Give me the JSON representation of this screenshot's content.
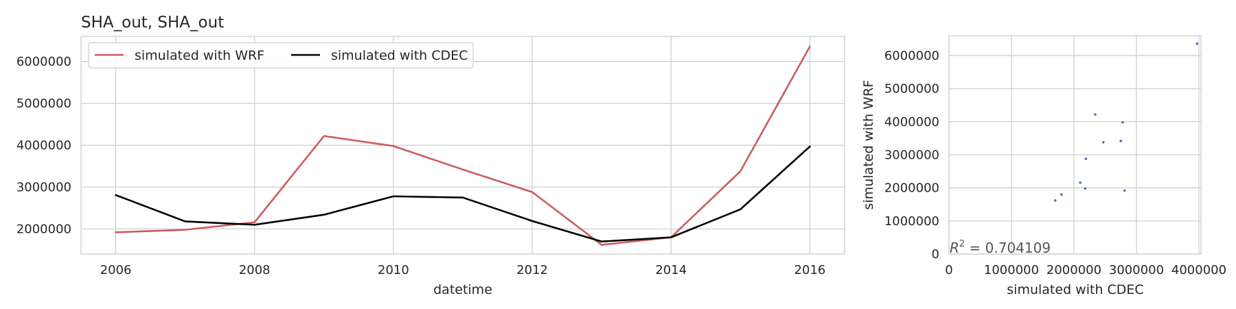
{
  "chart_data": [
    {
      "type": "line",
      "title": "SHA_out, SHA_out",
      "xlabel": "datetime",
      "ylabel": "",
      "x": [
        2006,
        2007,
        2008,
        2009,
        2010,
        2011,
        2012,
        2013,
        2014,
        2015,
        2016
      ],
      "xlim": [
        2005.5,
        2016.5
      ],
      "ylim": [
        1400000,
        6600000
      ],
      "xticks": [
        "2006",
        "2008",
        "2010",
        "2012",
        "2014",
        "2016"
      ],
      "yticks": [
        "2000000",
        "3000000",
        "4000000",
        "5000000",
        "6000000"
      ],
      "grid": true,
      "legend": "top-left",
      "series": [
        {
          "name": "simulated with WRF",
          "color": "#cd5c5c",
          "values": [
            1920000,
            1980000,
            2160000,
            4220000,
            3980000,
            3420000,
            2880000,
            1620000,
            1800000,
            3380000,
            6360000
          ]
        },
        {
          "name": "simulated with CDEC",
          "color": "#000000",
          "values": [
            2810000,
            2180000,
            2100000,
            2340000,
            2780000,
            2750000,
            2190000,
            1700000,
            1800000,
            2470000,
            3970000
          ]
        }
      ]
    },
    {
      "type": "scatter",
      "title": "",
      "xlabel": "simulated with CDEC",
      "ylabel": "simulated with WRF",
      "xlim": [
        0,
        4000000
      ],
      "ylim": [
        0,
        6600000
      ],
      "xticks": [
        "0",
        "1000000",
        "2000000",
        "3000000",
        "4000000"
      ],
      "yticks": [
        "0",
        "1000000",
        "2000000",
        "3000000",
        "4000000",
        "5000000",
        "6000000"
      ],
      "grid": true,
      "point_color": "#4c72b0",
      "annotation": "R",
      "annotation_sup": "2",
      "annotation_value": " = 0.704109",
      "points": [
        {
          "x": 2810000,
          "y": 1920000
        },
        {
          "x": 2180000,
          "y": 1980000
        },
        {
          "x": 2100000,
          "y": 2160000
        },
        {
          "x": 2340000,
          "y": 4220000
        },
        {
          "x": 2780000,
          "y": 3980000
        },
        {
          "x": 2750000,
          "y": 3420000
        },
        {
          "x": 2190000,
          "y": 2880000
        },
        {
          "x": 1700000,
          "y": 1620000
        },
        {
          "x": 1800000,
          "y": 1800000
        },
        {
          "x": 2470000,
          "y": 3380000
        },
        {
          "x": 3970000,
          "y": 6360000
        }
      ]
    }
  ]
}
